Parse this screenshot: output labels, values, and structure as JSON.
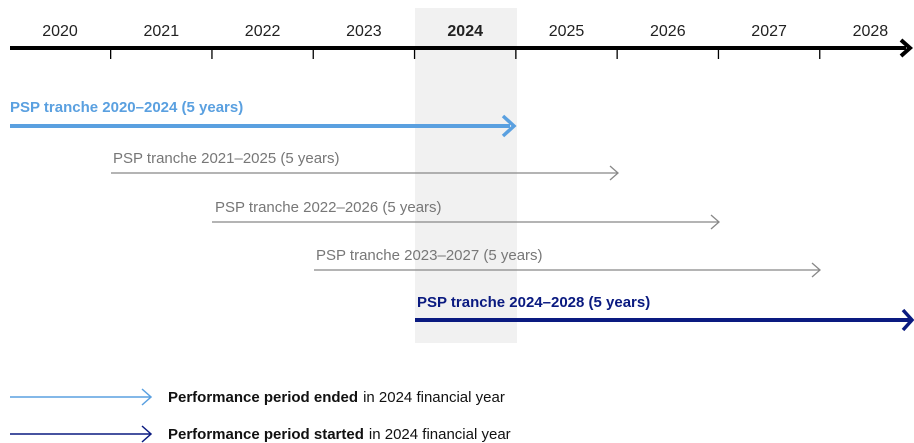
{
  "timeline": {
    "years": [
      "2020",
      "2021",
      "2022",
      "2023",
      "2024",
      "2025",
      "2026",
      "2027",
      "2028"
    ]
  },
  "tranches": [
    {
      "label": "PSP tranche 2020–2024 (5 years)"
    },
    {
      "label": "PSP tranche 2021–2025 (5 years)"
    },
    {
      "label": "PSP tranche 2022–2026 (5 years)"
    },
    {
      "label": "PSP tranche 2023–2027 (5 years)"
    },
    {
      "label": "PSP tranche 2024–2028 (5 years)"
    }
  ],
  "legend": [
    {
      "bold": "Performance period ended",
      "rest": "in 2024 financial year"
    },
    {
      "bold": "Performance period started",
      "rest": "in 2024 financial year"
    }
  ]
}
